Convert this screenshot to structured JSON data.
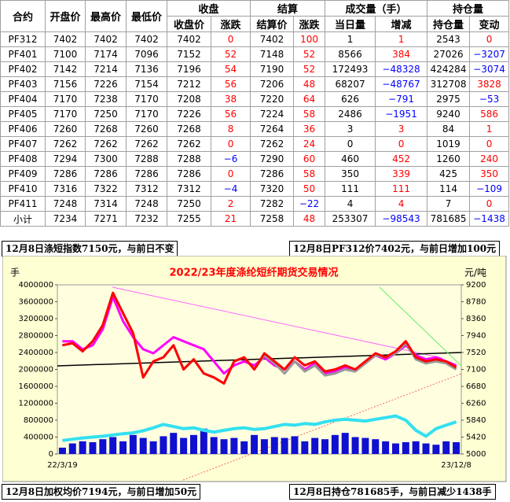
{
  "table": {
    "groups": [
      "收盘",
      "结算",
      "成交量（手）",
      "持仓量"
    ],
    "columns": [
      "合约",
      "开盘价",
      "最高价",
      "最低价",
      "收盘价",
      "涨跌",
      "结算价",
      "涨跌",
      "当日量",
      "增减",
      "持仓量",
      "变动"
    ],
    "rows": [
      [
        "PF312",
        "7402",
        "7402",
        "7402",
        "7402",
        "0",
        "7402",
        "100",
        "1",
        "1",
        "2543",
        "0"
      ],
      [
        "PF401",
        "7100",
        "7174",
        "7096",
        "7152",
        "52",
        "7148",
        "52",
        "8566",
        "384",
        "27026",
        "−3207"
      ],
      [
        "PF402",
        "7142",
        "7214",
        "7136",
        "7196",
        "54",
        "7190",
        "52",
        "172493",
        "−48328",
        "424284",
        "−3074"
      ],
      [
        "PF403",
        "7156",
        "7226",
        "7154",
        "7212",
        "56",
        "7206",
        "48",
        "68207",
        "−48767",
        "312708",
        "3828"
      ],
      [
        "PF404",
        "7170",
        "7238",
        "7170",
        "7208",
        "38",
        "7220",
        "64",
        "626",
        "−791",
        "2975",
        "−53"
      ],
      [
        "PF405",
        "7170",
        "7250",
        "7170",
        "7226",
        "56",
        "7224",
        "58",
        "2486",
        "−1951",
        "9240",
        "586"
      ],
      [
        "PF406",
        "7260",
        "7268",
        "7260",
        "7268",
        "8",
        "7264",
        "36",
        "3",
        "3",
        "84",
        "1"
      ],
      [
        "PF407",
        "7262",
        "7262",
        "7262",
        "7262",
        "0",
        "7262",
        "24",
        "0",
        "0",
        "1019",
        "0"
      ],
      [
        "PF408",
        "7294",
        "7300",
        "7288",
        "7288",
        "−6",
        "7290",
        "60",
        "460",
        "452",
        "1260",
        "240"
      ],
      [
        "PF409",
        "7286",
        "7286",
        "7286",
        "7286",
        "0",
        "7286",
        "58",
        "350",
        "339",
        "425",
        "350"
      ],
      [
        "PF410",
        "7316",
        "7322",
        "7312",
        "7312",
        "−4",
        "7320",
        "50",
        "111",
        "111",
        "114",
        "−109"
      ],
      [
        "PF411",
        "7248",
        "7314",
        "7248",
        "7250",
        "2",
        "7282",
        "−22",
        "4",
        "4",
        "7",
        "0"
      ],
      [
        "小计",
        "7234",
        "7271",
        "7232",
        "7255",
        "21",
        "7258",
        "48",
        "253307",
        "−98543",
        "781685",
        "−1438"
      ]
    ]
  },
  "notices": [
    "12月8日涤短指数7150元，与前日不变",
    "12月8日PF312价7402元，与前日增加100元",
    "12月8日加权均价7194元，与前日增加50元",
    "12月8日持仓781685手，与前日减少1438手"
  ],
  "chart_data": {
    "type": "combo",
    "title": "2022/23年度涤纶短纤期货交易情况",
    "ylabel": "手",
    "y2label": "元/吨",
    "categories": [
      "22/3/19",
      null,
      null,
      null,
      null,
      null,
      null,
      null,
      null,
      null,
      null,
      null,
      null,
      null,
      null,
      null,
      null,
      null,
      null,
      null,
      null,
      null,
      null,
      null,
      null,
      null,
      null,
      null,
      null,
      null,
      null,
      null,
      null,
      null,
      null,
      null,
      null,
      null,
      null,
      "23/12/8"
    ],
    "ylim": [
      0,
      4000000
    ],
    "yticks": [
      0,
      400000,
      800000,
      1200000,
      1600000,
      2000000,
      2400000,
      2800000,
      3200000,
      3600000,
      4000000
    ],
    "y2lim": [
      5000,
      9200
    ],
    "y2ticks": [
      5000,
      5420,
      5840,
      6260,
      6680,
      7100,
      7520,
      7940,
      8360,
      8780,
      9200
    ],
    "series": [
      {
        "type": "bar",
        "color": "#1010d0",
        "values": [
          150000,
          250000,
          300000,
          280000,
          350000,
          400000,
          300000,
          450000,
          380000,
          300000,
          420000,
          500000,
          380000,
          450000,
          600000,
          400000,
          350000,
          380000,
          300000,
          450000,
          350000,
          400000,
          380000,
          420000,
          300000,
          380000,
          350000,
          450000,
          500000,
          400000,
          380000,
          350000,
          300000,
          250000,
          280000,
          300000,
          250000,
          220000,
          300000,
          280000
        ]
      },
      {
        "type": "line",
        "color": "#33e0f0",
        "width": 4,
        "values": [
          320000,
          350000,
          380000,
          400000,
          420000,
          450000,
          480000,
          500000,
          550000,
          620000,
          700000,
          650000,
          600000,
          620000,
          560000,
          520000,
          560000,
          600000,
          620000,
          580000,
          600000,
          650000,
          700000,
          680000,
          720000,
          700000,
          760000,
          800000,
          820000,
          800000,
          780000,
          820000,
          860000,
          900000,
          800000,
          560000,
          420000,
          600000,
          680000,
          760000
        ]
      },
      {
        "type": "line",
        "axis": "y2",
        "color": "#ff00ff",
        "width": 3,
        "values": [
          7800,
          7800,
          7600,
          7700,
          8100,
          8900,
          8300,
          7900,
          7600,
          7500,
          7700,
          7900,
          7800,
          7700,
          7600,
          7300,
          7000,
          7200,
          7300,
          7200,
          7400,
          7200,
          7100,
          7300,
          7100,
          7250,
          7000,
          7050,
          7150,
          7100,
          7250,
          7450,
          7350,
          7500,
          7700,
          7450,
          7350,
          7400,
          7300,
          7200
        ]
      },
      {
        "type": "line",
        "axis": "y2",
        "color": "#999999",
        "width": 3,
        "values": [
          7700,
          7750,
          7550,
          7800,
          8200,
          9000,
          8500,
          8000,
          6900,
          7300,
          7400,
          7700,
          7100,
          7350,
          7000,
          6900,
          6750,
          7300,
          7400,
          7100,
          7450,
          7250,
          7000,
          7300,
          7050,
          7200,
          6950,
          7000,
          7100,
          7050,
          7250,
          7450,
          7400,
          7500,
          7750,
          7350,
          7250,
          7300,
          7250,
          7100
        ]
      },
      {
        "type": "line",
        "axis": "y2",
        "color": "#ff0000",
        "width": 3,
        "values": [
          7700,
          7750,
          7550,
          7800,
          8200,
          9000,
          8500,
          8000,
          6900,
          7300,
          7400,
          7700,
          7100,
          7350,
          7000,
          6900,
          6750,
          7300,
          7400,
          7100,
          7500,
          7300,
          7100,
          7400,
          7200,
          7300,
          7050,
          7100,
          7200,
          7100,
          7300,
          7500,
          7400,
          7550,
          7800,
          7400,
          7300,
          7350,
          7300,
          7150
        ]
      }
    ]
  }
}
